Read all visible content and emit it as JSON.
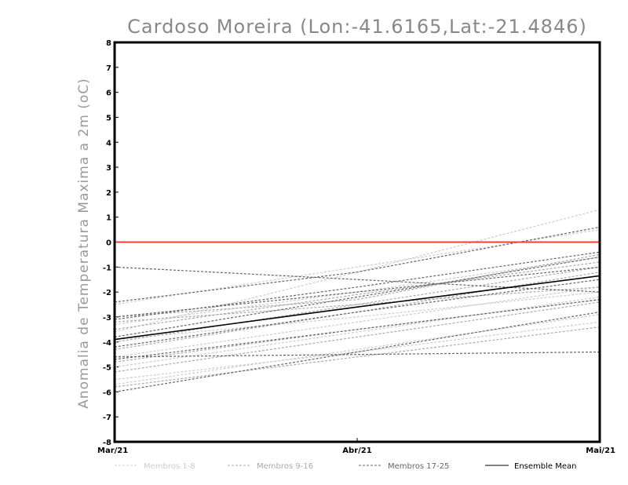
{
  "chart_data": {
    "type": "line",
    "title": "Cardoso Moreira (Lon:-41.6165,Lat:-21.4846)",
    "xlabel": "",
    "ylabel": "Anomalia de Temperatura Maxima a 2m (oC)",
    "categories": [
      "Mar/21",
      "Abr/21",
      "Mai/21"
    ],
    "ylim": [
      -8,
      8
    ],
    "yticks": [
      "8",
      "7",
      "6",
      "5",
      "4",
      "3",
      "2",
      "1",
      "0",
      "-1",
      "-2",
      "-3",
      "-4",
      "-5",
      "-6",
      "-7",
      "-8"
    ],
    "reference_line": {
      "y": 0,
      "color": "#ff3b30"
    },
    "groups": [
      {
        "name": "Membros 1-8",
        "color": "#cccccc",
        "dash": "3,2",
        "members": [
          {
            "values": [
              -5.5,
              -4.4,
              -3.2
            ]
          },
          {
            "values": [
              -3.6,
              -1.2,
              1.3
            ]
          },
          {
            "values": [
              -5.0,
              -3.6,
              -2.2
            ]
          },
          {
            "values": [
              -4.6,
              -3.2,
              -1.8
            ]
          },
          {
            "values": [
              -3.3,
              -2.0,
              -0.6
            ]
          },
          {
            "values": [
              -5.7,
              -4.3,
              -2.9
            ]
          },
          {
            "values": [
              -2.5,
              -1.0,
              0.5
            ]
          },
          {
            "values": [
              -3.9,
              -3.0,
              -2.0
            ]
          }
        ]
      },
      {
        "name": "Membros 9-16",
        "color": "#aaaaaa",
        "dash": "3,2",
        "members": [
          {
            "values": [
              -4.8,
              -3.5,
              -2.3
            ]
          },
          {
            "values": [
              -3.2,
              -2.5,
              -1.8
            ]
          },
          {
            "values": [
              -4.3,
              -2.8,
              -1.2
            ]
          },
          {
            "values": [
              -5.8,
              -4.6,
              -3.4
            ]
          },
          {
            "values": [
              -3.0,
              -2.3,
              -0.5
            ]
          },
          {
            "values": [
              -4.0,
              -2.5,
              -1.0
            ]
          },
          {
            "values": [
              -5.2,
              -3.8,
              -2.4
            ]
          },
          {
            "values": [
              -3.5,
              -2.1,
              -0.8
            ]
          }
        ]
      },
      {
        "name": "Membros 17-25",
        "color": "#666666",
        "dash": "3,2",
        "members": [
          {
            "values": [
              -1.0,
              -1.5,
              -2.0
            ]
          },
          {
            "values": [
              -2.4,
              -1.2,
              0.6
            ]
          },
          {
            "values": [
              -3.1,
              -1.8,
              -0.4
            ]
          },
          {
            "values": [
              -4.6,
              -4.5,
              -4.4
            ]
          },
          {
            "values": [
              -3.8,
              -2.2,
              -0.6
            ]
          },
          {
            "values": [
              -4.2,
              -2.8,
              -1.5
            ]
          },
          {
            "values": [
              -3.0,
              -2.0,
              -1.0
            ]
          },
          {
            "values": [
              -4.7,
              -3.5,
              -2.3
            ]
          },
          {
            "values": [
              -6.0,
              -4.4,
              -2.8
            ]
          }
        ]
      }
    ],
    "ensemble_mean": {
      "name": "Ensemble Mean",
      "color": "#000000",
      "values": [
        -3.9,
        -2.6,
        -1.35
      ]
    }
  }
}
